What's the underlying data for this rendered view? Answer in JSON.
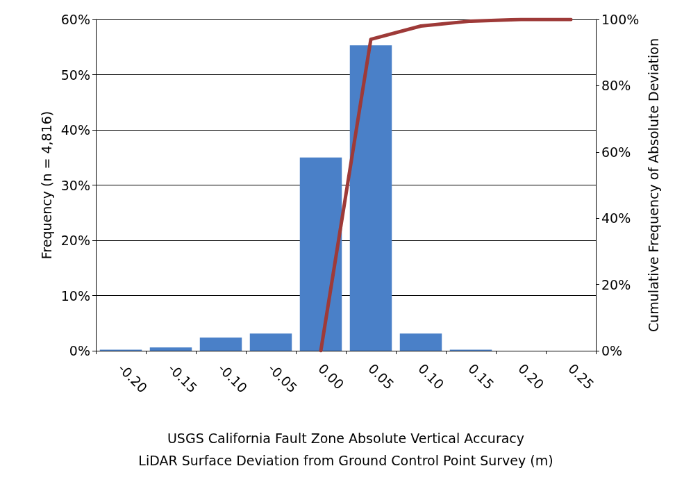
{
  "chart_data": {
    "type": "bar",
    "xlabel": "USGS California Fault Zone Absolute Vertical Accuracy\nLiDAR Surface Deviation from Ground Control Point Survey (m)",
    "ylabel": "Frequency (n = 4,816)",
    "y2label": "Cumulative Frequency of Absolute Deviation",
    "categories": [
      "-0.20",
      "-0.15",
      "-0.10",
      "-0.05",
      "0.00",
      "0.05",
      "0.10",
      "0.15",
      "0.20",
      "0.25"
    ],
    "series": [
      {
        "color": "#4a80c8",
        "values": [
          0.2,
          0.6,
          2.4,
          3.1,
          35,
          55.3,
          3.1,
          0.2,
          0,
          0
        ]
      },
      {
        "type": "line",
        "axis": "y2",
        "color": "#9e3a38",
        "values": [
          null,
          null,
          null,
          null,
          0,
          94,
          98,
          99.5,
          100,
          100
        ]
      }
    ],
    "ylim": [
      0,
      60
    ],
    "yticks": [
      {
        "value": 0,
        "label": "0%"
      },
      {
        "value": 10,
        "label": "10%"
      },
      {
        "value": 20,
        "label": "20%"
      },
      {
        "value": 30,
        "label": "30%"
      },
      {
        "value": 40,
        "label": "40%"
      },
      {
        "value": 50,
        "label": "50%"
      },
      {
        "value": 60,
        "label": "60%"
      }
    ],
    "y2lim": [
      0,
      100
    ],
    "y2ticks": [
      {
        "value": 0,
        "label": "0%"
      },
      {
        "value": 20,
        "label": "20%"
      },
      {
        "value": 40,
        "label": "40%"
      },
      {
        "value": 60,
        "label": "60%"
      },
      {
        "value": 80,
        "label": "80%"
      },
      {
        "value": 100,
        "label": "100%"
      }
    ],
    "grid": "y",
    "marker": "none",
    "line_style": "solid"
  }
}
